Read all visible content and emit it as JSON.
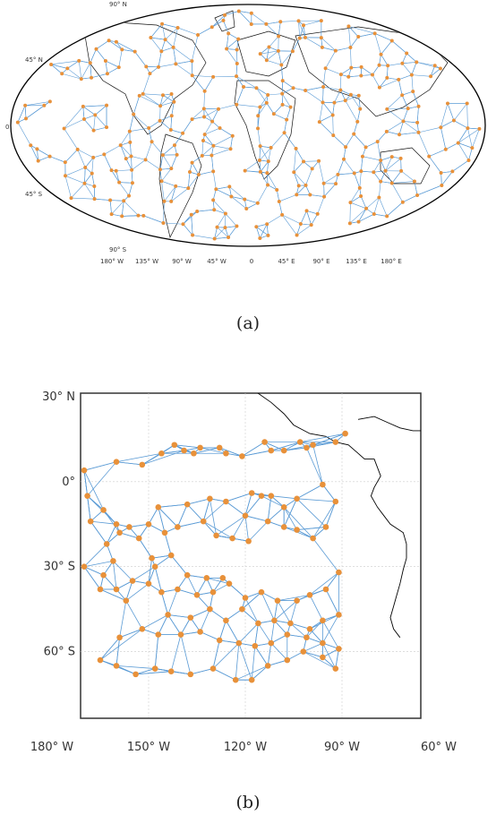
{
  "panel_a": {
    "caption": "(a)",
    "projection": "robinson",
    "lat_labels": [
      "90° N",
      "45° N",
      "0",
      "45° S",
      "90° S"
    ],
    "lon_labels": [
      "180° W",
      "135° W",
      "90° W",
      "45° W",
      "0",
      "45° E",
      "90° E",
      "135° E",
      "180° E"
    ],
    "node_color": "#e8913a",
    "edge_color": "#5b9bd5",
    "node_count_approx": 380
  },
  "panel_b": {
    "caption": "(b)",
    "lat_labels": [
      "30° N",
      "0°",
      "30° S",
      "60° S"
    ],
    "lon_labels": [
      "180° W",
      "150° W",
      "120° W",
      "90° W",
      "60° W"
    ],
    "node_color": "#e8913a",
    "edge_color": "#5b9bd5",
    "nodes": [
      [
        -170,
        4
      ],
      [
        -160,
        7
      ],
      [
        -152,
        6
      ],
      [
        -146,
        10
      ],
      [
        -142,
        13
      ],
      [
        -139,
        11
      ],
      [
        -136,
        10
      ],
      [
        -134,
        12
      ],
      [
        -128,
        12
      ],
      [
        -126,
        10
      ],
      [
        -121,
        9
      ],
      [
        -114,
        14
      ],
      [
        -112,
        11
      ],
      [
        -108,
        11
      ],
      [
        -103,
        14
      ],
      [
        -101,
        12
      ],
      [
        -99,
        13
      ],
      [
        -92,
        14
      ],
      [
        -89,
        17
      ],
      [
        -169,
        -5
      ],
      [
        -168,
        -14
      ],
      [
        -164,
        -10
      ],
      [
        -160,
        -15
      ],
      [
        -156,
        -16
      ],
      [
        -150,
        -15
      ],
      [
        -145,
        -18
      ],
      [
        -141,
        -16
      ],
      [
        -138,
        -8
      ],
      [
        -131,
        -6
      ],
      [
        -126,
        -7
      ],
      [
        -120,
        -12
      ],
      [
        -118,
        -4
      ],
      [
        -115,
        -5
      ],
      [
        -112,
        -5
      ],
      [
        -108,
        -9
      ],
      [
        -104,
        -6
      ],
      [
        -96,
        -1
      ],
      [
        -92,
        -7
      ],
      [
        -147,
        -9
      ],
      [
        -133,
        -14
      ],
      [
        -129,
        -19
      ],
      [
        -124,
        -20
      ],
      [
        -119,
        -21
      ],
      [
        -113,
        -14
      ],
      [
        -108,
        -16
      ],
      [
        -104,
        -17
      ],
      [
        -99,
        -20
      ],
      [
        -95,
        -16
      ],
      [
        -163,
        -22
      ],
      [
        -159,
        -18
      ],
      [
        -153,
        -20
      ],
      [
        -148,
        -30
      ],
      [
        -143,
        -26
      ],
      [
        -138,
        -33
      ],
      [
        -132,
        -34
      ],
      [
        -127,
        -34
      ],
      [
        -170,
        -30
      ],
      [
        -164,
        -33
      ],
      [
        -160,
        -38
      ],
      [
        -155,
        -35
      ],
      [
        -150,
        -36
      ],
      [
        -146,
        -39
      ],
      [
        -141,
        -38
      ],
      [
        -135,
        -40
      ],
      [
        -130,
        -39
      ],
      [
        -125,
        -36
      ],
      [
        -120,
        -41
      ],
      [
        -115,
        -39
      ],
      [
        -110,
        -42
      ],
      [
        -104,
        -42
      ],
      [
        -100,
        -40
      ],
      [
        -95,
        -38
      ],
      [
        -91,
        -32
      ],
      [
        -165,
        -38
      ],
      [
        -161,
        -28
      ],
      [
        -157,
        -42
      ],
      [
        -149,
        -27
      ],
      [
        -144,
        -47
      ],
      [
        -137,
        -48
      ],
      [
        -131,
        -45
      ],
      [
        -126,
        -49
      ],
      [
        -121,
        -45
      ],
      [
        -116,
        -50
      ],
      [
        -111,
        -49
      ],
      [
        -106,
        -50
      ],
      [
        -100,
        -52
      ],
      [
        -96,
        -49
      ],
      [
        -91,
        -47
      ],
      [
        -159,
        -55
      ],
      [
        -152,
        -52
      ],
      [
        -147,
        -54
      ],
      [
        -140,
        -54
      ],
      [
        -134,
        -53
      ],
      [
        -128,
        -56
      ],
      [
        -122,
        -57
      ],
      [
        -117,
        -58
      ],
      [
        -112,
        -57
      ],
      [
        -107,
        -54
      ],
      [
        -101,
        -55
      ],
      [
        -96,
        -57
      ],
      [
        -91,
        -59
      ],
      [
        -165,
        -63
      ],
      [
        -160,
        -65
      ],
      [
        -154,
        -68
      ],
      [
        -148,
        -66
      ],
      [
        -143,
        -67
      ],
      [
        -137,
        -68
      ],
      [
        -130,
        -66
      ],
      [
        -123,
        -70
      ],
      [
        -118,
        -70
      ],
      [
        -113,
        -65
      ],
      [
        -107,
        -63
      ],
      [
        -102,
        -60
      ],
      [
        -96,
        -62
      ],
      [
        -92,
        -66
      ]
    ]
  }
}
